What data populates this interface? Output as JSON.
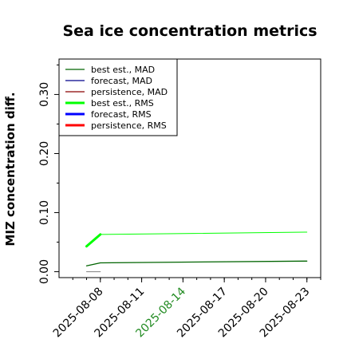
{
  "chart_data": {
    "type": "line",
    "title": "Sea ice concentration metrics",
    "xlabel": "",
    "ylabel": "MIZ concentration diff.",
    "xlim": [
      "2025-08-05",
      "2025-08-24"
    ],
    "ylim": [
      -0.01,
      0.36
    ],
    "xticks": [
      {
        "label": "2025-08-08",
        "date": "2025-08-08",
        "color": "#000000"
      },
      {
        "label": "2025-08-11",
        "date": "2025-08-11",
        "color": "#000000"
      },
      {
        "label": "2025-08-14",
        "date": "2025-08-14",
        "color": "#228b22"
      },
      {
        "label": "2025-08-17",
        "date": "2025-08-17",
        "color": "#000000"
      },
      {
        "label": "2025-08-20",
        "date": "2025-08-20",
        "color": "#000000"
      },
      {
        "label": "2025-08-23",
        "date": "2025-08-23",
        "color": "#000000"
      }
    ],
    "yticks": [
      {
        "label": "0.00",
        "value": 0.0
      },
      {
        "label": "0.10",
        "value": 0.1
      },
      {
        "label": "0.20",
        "value": 0.2
      },
      {
        "label": "0.30",
        "value": 0.3
      }
    ],
    "yminorticks": [
      0.05,
      0.15,
      0.25,
      0.35
    ],
    "legend_position": "upper-left",
    "series": [
      {
        "name": "best est., MAD",
        "color": "#006400",
        "width": 1.3,
        "x": [
          "2025-08-07",
          "2025-08-08",
          "2025-08-23"
        ],
        "values": [
          0.01,
          0.015,
          0.018
        ]
      },
      {
        "name": "forecast,  MAD",
        "color": "#00008b",
        "width": 1.3,
        "x": [],
        "values": []
      },
      {
        "name": "persistence, MAD",
        "color": "#8b0000",
        "width": 1.3,
        "x": [],
        "values": []
      },
      {
        "name": "best est., RMS",
        "color": "#00ff00",
        "width": 3,
        "x": [
          "2025-08-07",
          "2025-08-08"
        ],
        "values": [
          0.043,
          0.063
        ]
      },
      {
        "name": "forecast,  RMS",
        "color": "#0000ff",
        "width": 3,
        "x": [],
        "values": []
      },
      {
        "name": "persistence, RMS",
        "color": "#ff0000",
        "width": 3,
        "x": [],
        "values": []
      }
    ],
    "extra_lines": [
      {
        "color": "#808080",
        "width": 1,
        "x": [
          "2025-08-07",
          "2025-08-08"
        ],
        "values": [
          0.0,
          0.0
        ]
      },
      {
        "color": "#00ff00",
        "width": 1,
        "x": [
          "2025-08-08",
          "2025-08-23"
        ],
        "values": [
          0.063,
          0.067
        ]
      }
    ]
  }
}
